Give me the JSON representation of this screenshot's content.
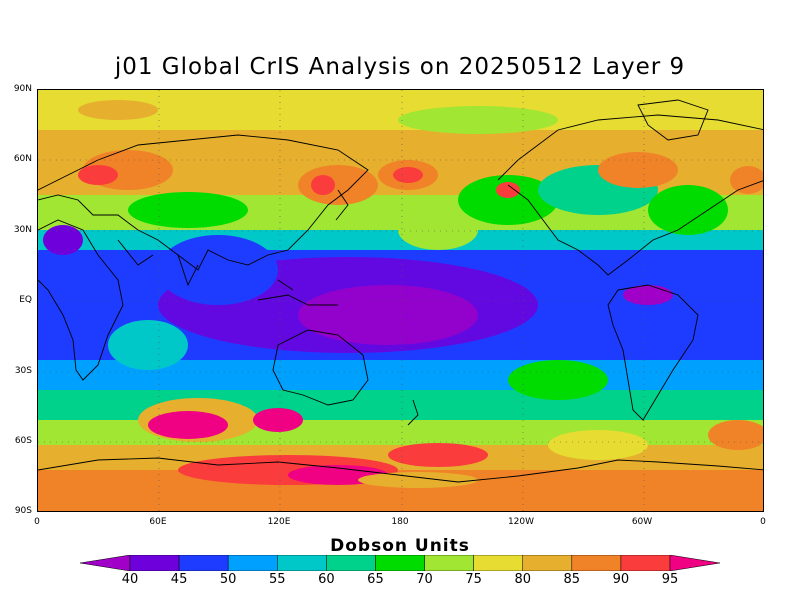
{
  "title": "j01 Global CrIS Analysis on 20250512 Layer 9",
  "lat_ticks": [
    "90N",
    "60N",
    "30N",
    "EQ",
    "30S",
    "60S",
    "90S"
  ],
  "lon_ticks": [
    "0",
    "60E",
    "120E",
    "180",
    "120W",
    "60W",
    "0"
  ],
  "colorbar": {
    "title": "Dobson Units",
    "labels": [
      "40",
      "45",
      "50",
      "55",
      "60",
      "65",
      "70",
      "75",
      "80",
      "85",
      "90",
      "95"
    ],
    "colors": [
      "#a000c8",
      "#6e00dc",
      "#1e3cff",
      "#00a0ff",
      "#00c8c8",
      "#00d28c",
      "#00dc00",
      "#a0e632",
      "#e6dc32",
      "#e6af2d",
      "#f08228",
      "#fa3c3c",
      "#f00082"
    ]
  },
  "map": {
    "field": "ozone",
    "units": "Dobson Units",
    "bands": [
      {
        "lat_range": [
          70,
          90
        ],
        "value_du": 80
      },
      {
        "lat_range": [
          40,
          70
        ],
        "value_du": 85
      },
      {
        "lat_range": [
          25,
          40
        ],
        "value_du": 65
      },
      {
        "lat_range": [
          -25,
          25
        ],
        "value_du": 50
      },
      {
        "lat_range": [
          -40,
          -25
        ],
        "value_du": 60
      },
      {
        "lat_range": [
          -60,
          -40
        ],
        "value_du": 75
      },
      {
        "lat_range": [
          -90,
          -60
        ],
        "value_du": 90
      }
    ]
  }
}
